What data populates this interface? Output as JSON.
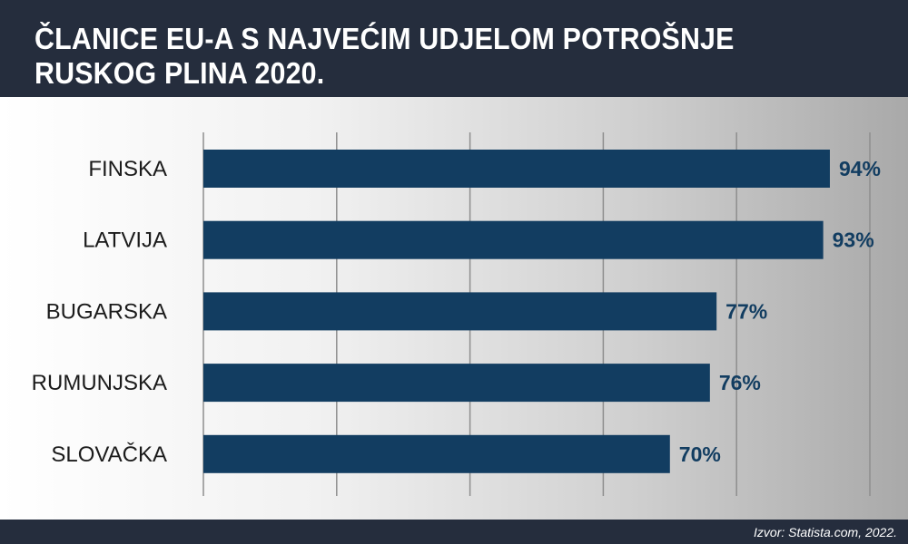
{
  "header": {
    "title": "ČLANICE EU-A S NAJVEĆIM UDJELOM POTROŠNJE RUSKOG PLINA 2020."
  },
  "footer": {
    "source": "Izvor: Statista.com, 2022."
  },
  "colors": {
    "header_bg": "#252d3d",
    "bar": "#123d61",
    "label": "#1b1b1b",
    "value_label": "#123d61",
    "gridline": "#8e8e8e"
  },
  "chart_data": {
    "type": "bar",
    "orientation": "horizontal",
    "categories": [
      "FINSKA",
      "LATVIJA",
      "BUGARSKA",
      "RUMUNJSKA",
      "SLOVAČKA"
    ],
    "values": [
      94,
      93,
      77,
      76,
      70
    ],
    "value_labels": [
      "94%",
      "93%",
      "77%",
      "76%",
      "70%"
    ],
    "unit": "%",
    "title": "ČLANICE EU-A S NAJVEĆIM UDJELOM POTROŠNJE RUSKOG PLINA 2020.",
    "xlim": [
      0,
      100
    ],
    "grid": true,
    "gridline_values": [
      0,
      20,
      40,
      60,
      80,
      100
    ],
    "legend": "none"
  }
}
